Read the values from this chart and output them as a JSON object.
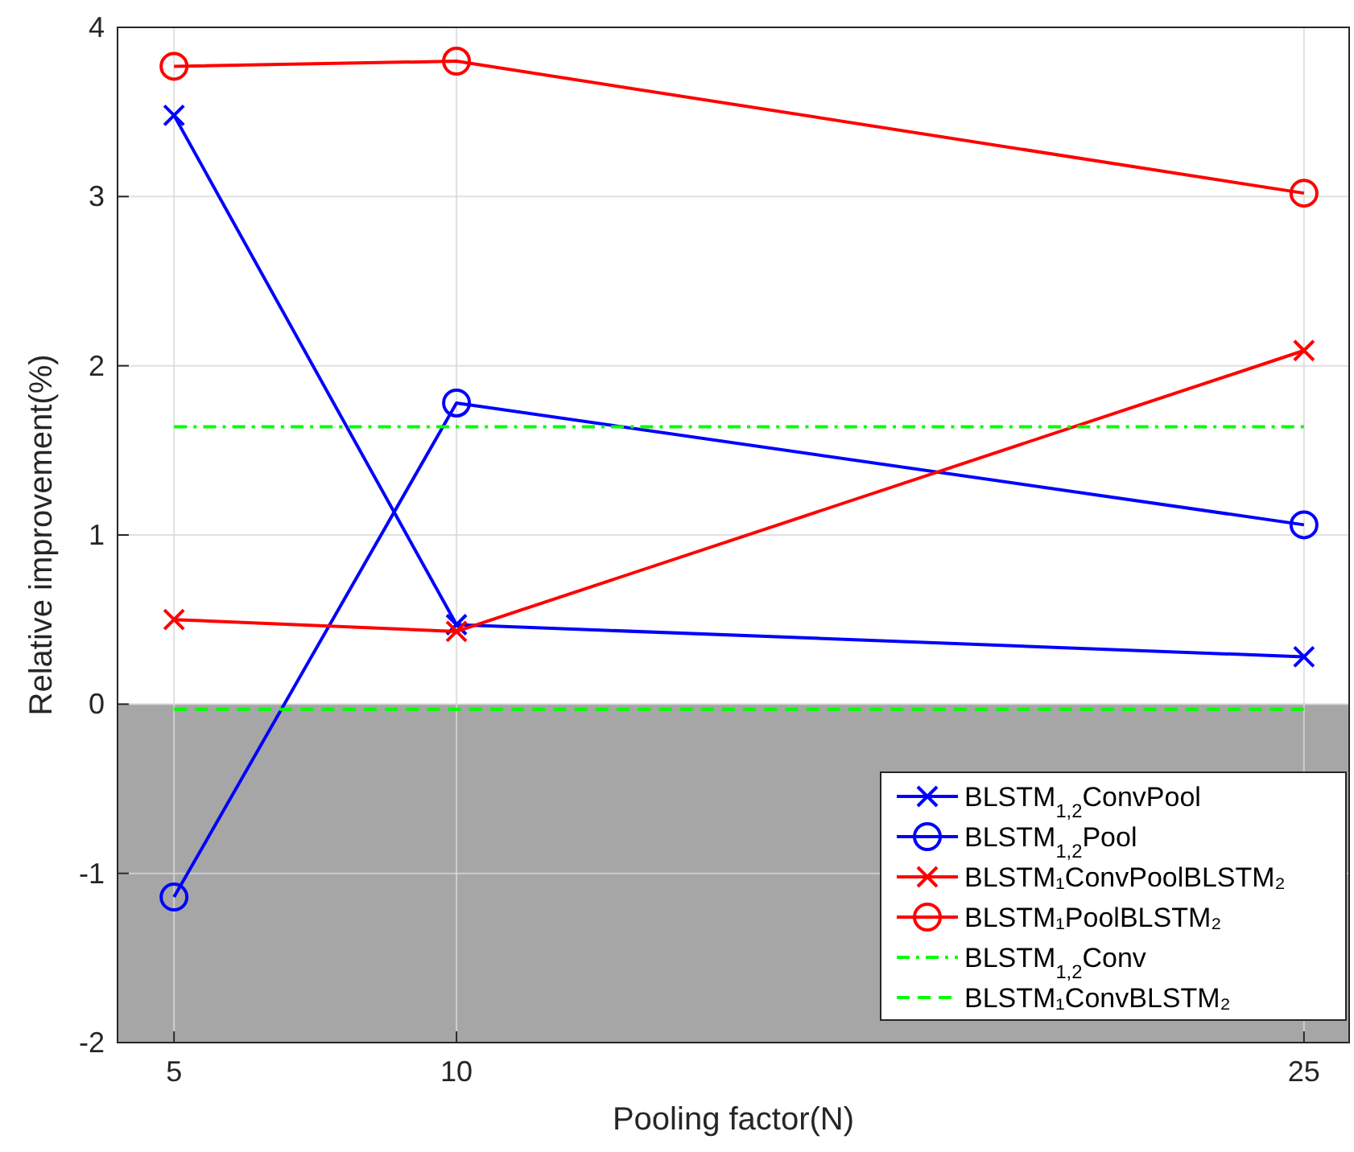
{
  "chart_data": {
    "type": "line",
    "xlabel": "Pooling factor(N)",
    "ylabel": "Relative improvement(%)",
    "x": [
      5,
      10,
      25
    ],
    "series": [
      {
        "name": "BLSTM$_{1,2}$ConvPool",
        "color": "#0000ff",
        "values": [
          3.48,
          0.47,
          0.28
        ],
        "marker": "cross",
        "line_style": "solid"
      },
      {
        "name": "BLSTM$_{1,2}$Pool",
        "color": "#0000ff",
        "values": [
          -1.14,
          1.78,
          1.06
        ],
        "marker": "circle",
        "line_style": "solid"
      },
      {
        "name": "BLSTM₁ConvPoolBLSTM₂",
        "color": "#ff0000",
        "values": [
          0.5,
          0.43,
          2.09
        ],
        "marker": "cross",
        "line_style": "solid"
      },
      {
        "name": "BLSTM₁PoolBLSTM₂",
        "color": "#ff0000",
        "values": [
          3.77,
          3.8,
          3.02
        ],
        "marker": "circle",
        "line_style": "solid"
      },
      {
        "name": "BLSTM$_{1,2}$Conv",
        "color": "#00ff00",
        "values": [
          1.64,
          1.64,
          1.64
        ],
        "marker": "none",
        "line_style": "dashdot"
      },
      {
        "name": "BLSTM₁ConvBLSTM₂",
        "color": "#00ff00",
        "values": [
          -0.03,
          -0.03,
          -0.03
        ],
        "marker": "none",
        "line_style": "dashed"
      }
    ],
    "xlim": [
      4,
      25.8
    ],
    "xticks": [
      5,
      10,
      25
    ],
    "ylim": [
      -2,
      4
    ],
    "yticks": [
      -2,
      -1,
      0,
      1,
      2,
      3,
      4
    ],
    "bands": [
      {
        "axis": "y",
        "from": -2,
        "to": 0,
        "color": "#a6a6a6"
      }
    ],
    "grid": true,
    "legend": "bottom right"
  }
}
